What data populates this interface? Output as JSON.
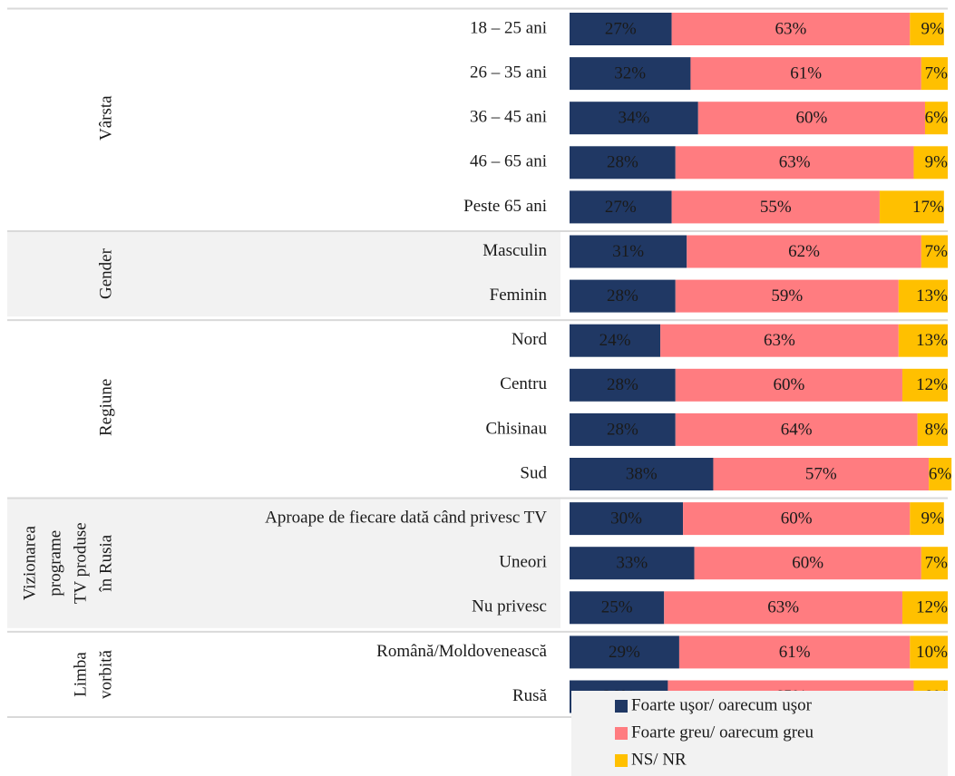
{
  "chart_data": {
    "type": "stacked-bar",
    "orientation": "horizontal",
    "xlim": [
      0,
      100
    ],
    "groups": [
      {
        "label": [
          "Vârsta"
        ],
        "categories": [
          "18 – 25 ani",
          "26 – 35 ani",
          "36 – 45 ani",
          "46 – 65 ani",
          "Peste 65 ani"
        ],
        "shaded": false
      },
      {
        "label": [
          "Gender"
        ],
        "categories": [
          "Masculin",
          "Feminin"
        ],
        "shaded": true
      },
      {
        "label": [
          "Regiune"
        ],
        "categories": [
          "Nord",
          "Centru",
          "Chisinau",
          "Sud"
        ],
        "shaded": false
      },
      {
        "label": [
          "Vizionarea",
          "programe",
          "TV produse",
          "în Rusia"
        ],
        "categories": [
          "Aproape de fiecare dată când privesc TV",
          "Uneori",
          "Nu privesc"
        ],
        "shaded": true
      },
      {
        "label": [
          "Limba",
          "vorbită"
        ],
        "categories": [
          "Română/Moldovenească",
          "Rusă"
        ],
        "shaded": false
      }
    ],
    "series": [
      {
        "name": "Foarte uşor/ oarecum uşor",
        "color": "#203864",
        "label_color": "#ffffff",
        "values": [
          27,
          32,
          34,
          28,
          27,
          31,
          28,
          24,
          28,
          28,
          38,
          30,
          33,
          25,
          29,
          26
        ],
        "value_labels": [
          "27%",
          "32%",
          "34%",
          "28%",
          "27%",
          "31%",
          "28%",
          "24%",
          "28%",
          "28%",
          "38%",
          "30%",
          "33%",
          "25%",
          "29%",
          "26%"
        ]
      },
      {
        "name": "Foarte greu/ oarecum greu",
        "color": "#ff7c80",
        "label_color": "#ffffff",
        "values": [
          63,
          61,
          60,
          63,
          55,
          62,
          59,
          63,
          60,
          64,
          57,
          60,
          60,
          63,
          61,
          65
        ],
        "value_labels": [
          "63%",
          "61%",
          "60%",
          "63%",
          "55%",
          "62%",
          "59%",
          "63%",
          "60%",
          "64%",
          "57%",
          "60%",
          "60%",
          "63%",
          "61%",
          "65%"
        ]
      },
      {
        "name": "NS/ NR",
        "color": "#ffc000",
        "label_color": "#1a1a1a",
        "values": [
          9,
          7,
          6,
          9,
          17,
          7,
          13,
          13,
          12,
          8,
          6,
          9,
          7,
          12,
          10,
          9
        ],
        "value_labels": [
          "9%",
          "7%",
          "6%",
          "9%",
          "17%",
          "7%",
          "13%",
          "13%",
          "12%",
          "8%",
          "6%",
          "9%",
          "7%",
          "12%",
          "10%",
          "9%"
        ]
      }
    ]
  }
}
